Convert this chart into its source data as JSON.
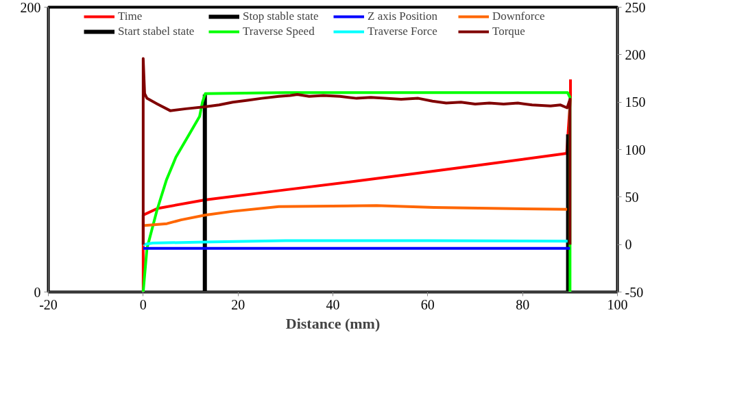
{
  "chart_data": {
    "type": "line",
    "xlabel": "Distance (mm)",
    "xlim": [
      -20,
      100
    ],
    "xticks": [
      -20,
      0,
      20,
      40,
      60,
      80,
      100
    ],
    "ylim": [
      0,
      200
    ],
    "yticks": [
      0,
      200
    ],
    "y2lim": [
      -50,
      250
    ],
    "y2ticks": [
      -50,
      0,
      50,
      100,
      150,
      200,
      250
    ],
    "grid": false,
    "legend": "top",
    "marker": "none",
    "line_style": "solid",
    "series": [
      {
        "name": "Time",
        "color": "#ff0000",
        "axis": "y2",
        "x": [
          0,
          0,
          3,
          13,
          29,
          50,
          70,
          89.3,
          90.1,
          90.1
        ],
        "values": [
          -50,
          31,
          38,
          47,
          57,
          70,
          83,
          96,
          155,
          174
        ]
      },
      {
        "name": "Start stabel state",
        "color": "#000000",
        "axis": "y2",
        "x": [
          13,
          13
        ],
        "values": [
          -50,
          158
        ]
      },
      {
        "name": "Stop stable state",
        "color": "#000000",
        "axis": "y2",
        "x": [
          89.6,
          89.6
        ],
        "values": [
          -50,
          116
        ]
      },
      {
        "name": "Traverse Speed",
        "color": "#00ff00",
        "axis": "y2",
        "x": [
          0,
          0.8,
          2.9,
          4.9,
          6.9,
          9.7,
          11.9,
          12.5,
          13.1,
          30,
          50,
          70,
          89.5,
          90,
          90
        ],
        "values": [
          -50,
          -4,
          36,
          68,
          92,
          116,
          135,
          150,
          159,
          160,
          160,
          160,
          160,
          155,
          -50
        ]
      },
      {
        "name": "Z axis Position",
        "color": "#0000ff",
        "axis": "y2",
        "x": [
          0,
          90
        ],
        "values": [
          -4,
          -4
        ]
      },
      {
        "name": "Traverse Force",
        "color": "#00ffff",
        "axis": "y2",
        "x": [
          0,
          2,
          13,
          30,
          60,
          89.5
        ],
        "values": [
          0,
          1.5,
          2.7,
          4,
          4,
          3.5
        ]
      },
      {
        "name": "Downforce",
        "color": "#ff6600",
        "axis": "y2",
        "x": [
          0,
          5,
          8,
          13,
          18.9,
          28.6,
          49.2,
          61.3,
          89.4
        ],
        "values": [
          20,
          22,
          26,
          31,
          35,
          40,
          41,
          39,
          37
        ]
      },
      {
        "name": "Torque",
        "color": "#800000",
        "axis": "y2",
        "x": [
          0,
          0,
          0.3,
          0.8,
          3,
          5.7,
          9,
          13,
          16,
          18.9,
          22,
          25,
          28.6,
          31,
          32.5,
          35,
          38,
          41.5,
          45,
          48,
          51,
          54.4,
          58,
          61,
          63.9,
          67,
          70,
          73,
          76,
          79,
          82,
          85.9,
          88,
          89.4,
          90,
          90
        ],
        "values": [
          0,
          196,
          159,
          154,
          148,
          141,
          143,
          145,
          147,
          150,
          152,
          154,
          156,
          157,
          158,
          156,
          157,
          156,
          154,
          155,
          154,
          153,
          154,
          151,
          149,
          150,
          148,
          149,
          148,
          149,
          147,
          146,
          147,
          144,
          153,
          0
        ]
      }
    ]
  }
}
